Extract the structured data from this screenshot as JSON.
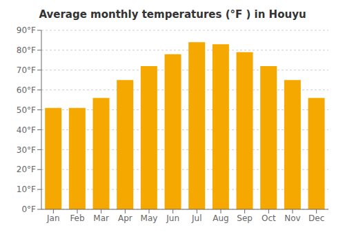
{
  "chart_data": {
    "type": "bar",
    "title": "Average monthly temperatures (°F ) in Houyu",
    "categories": [
      "Jan",
      "Feb",
      "Mar",
      "Apr",
      "May",
      "Jun",
      "Jul",
      "Aug",
      "Sep",
      "Oct",
      "Nov",
      "Dec"
    ],
    "values": [
      51,
      51,
      56,
      65,
      72,
      78,
      84,
      83,
      79,
      72,
      65,
      56
    ],
    "color": "#F5A800",
    "ylim": [
      0,
      90
    ],
    "yticks": [
      {
        "value": 0,
        "label": "0°F"
      },
      {
        "value": 10,
        "label": "10°F"
      },
      {
        "value": 20,
        "label": "20°F"
      },
      {
        "value": 30,
        "label": "30°F"
      },
      {
        "value": 40,
        "label": "40°F"
      },
      {
        "value": 50,
        "label": "50°F"
      },
      {
        "value": 60,
        "label": "60°F"
      },
      {
        "value": 70,
        "label": "70°F"
      },
      {
        "value": 80,
        "label": "80°F"
      },
      {
        "value": 90,
        "label": "90°F"
      }
    ],
    "grid": true
  }
}
